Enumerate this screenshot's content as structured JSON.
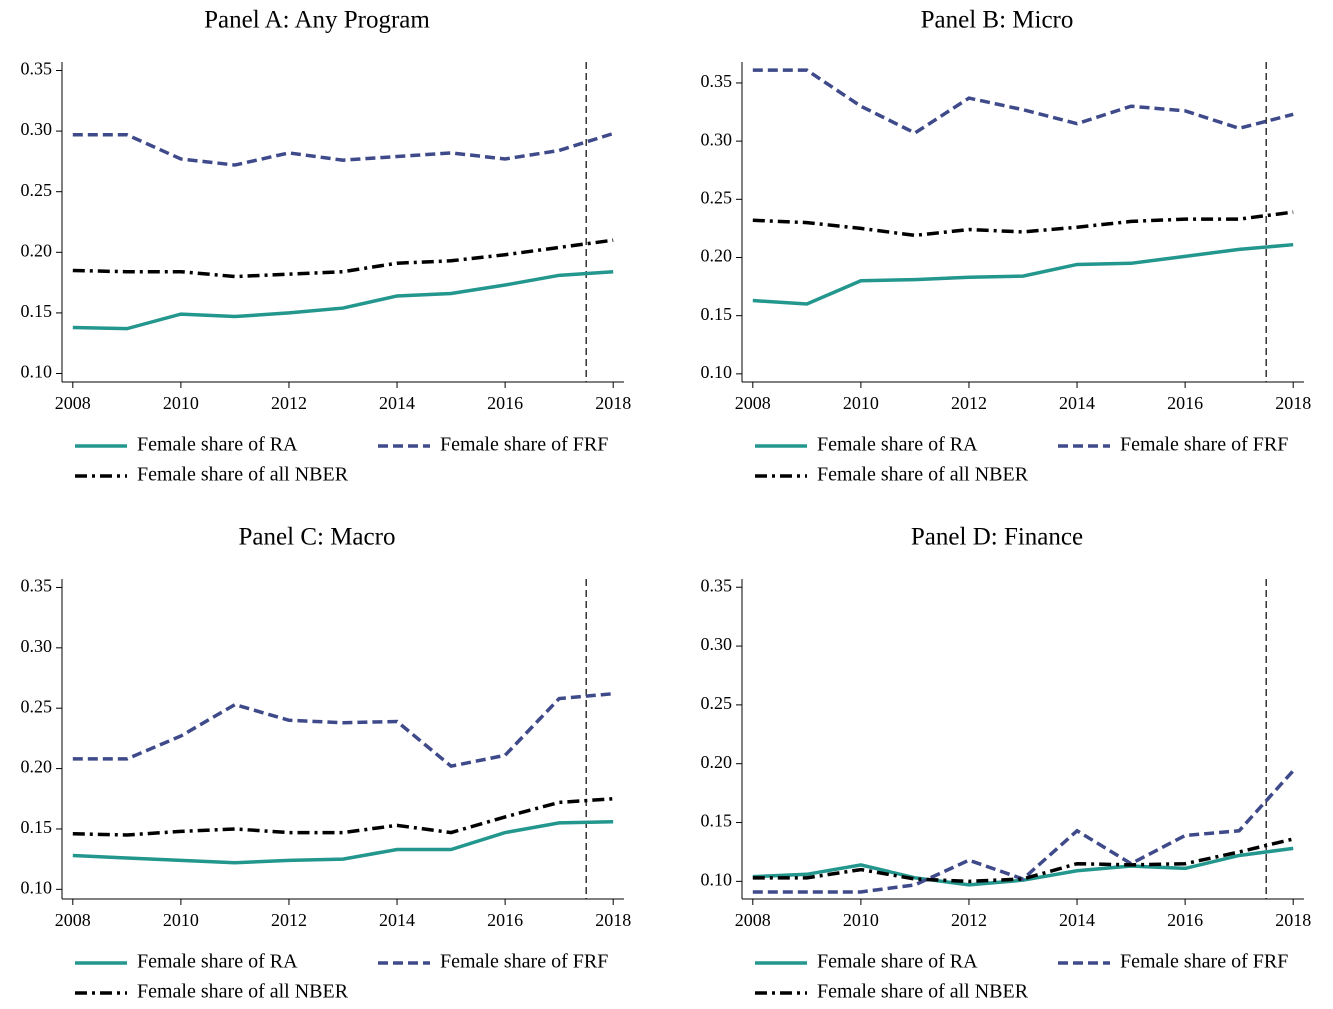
{
  "chart_data": [
    {
      "type": "line",
      "title": "Panel A: Any Program",
      "x": [
        2008,
        2009,
        2010,
        2011,
        2012,
        2013,
        2014,
        2015,
        2016,
        2017,
        2018
      ],
      "series": [
        {
          "name": "Female share of RA",
          "color": "#23978d",
          "dash": "solid",
          "values": [
            0.138,
            0.137,
            0.149,
            0.147,
            0.15,
            0.154,
            0.164,
            0.166,
            0.173,
            0.181,
            0.184
          ]
        },
        {
          "name": "Female share of FRF",
          "color": "#3f4a8a",
          "dash": "dashed",
          "values": [
            0.297,
            0.297,
            0.277,
            0.272,
            0.282,
            0.276,
            0.279,
            0.282,
            0.277,
            0.284,
            0.298
          ]
        },
        {
          "name": "Female share of all NBER",
          "color": "#000000",
          "dash": "dashdot",
          "values": [
            0.185,
            0.184,
            0.184,
            0.18,
            0.182,
            0.184,
            0.191,
            0.193,
            0.198,
            0.204,
            0.21
          ]
        }
      ],
      "xlim": [
        2007.8,
        2018.2
      ],
      "xticks": [
        2008,
        2010,
        2012,
        2014,
        2016,
        2018
      ],
      "ylim": [
        0.093,
        0.357
      ],
      "yticks": [
        {
          "value": 0.1,
          "label": "0.10"
        },
        {
          "value": 0.15,
          "label": "0.15"
        },
        {
          "value": 0.2,
          "label": "0.20"
        },
        {
          "value": 0.25,
          "label": "0.25"
        },
        {
          "value": 0.3,
          "label": "0.30"
        },
        {
          "value": 0.35,
          "label": "0.35"
        }
      ],
      "vline": 2017.5
    },
    {
      "type": "line",
      "title": "Panel B: Micro",
      "x": [
        2008,
        2009,
        2010,
        2011,
        2012,
        2013,
        2014,
        2015,
        2016,
        2017,
        2018
      ],
      "series": [
        {
          "name": "Female share of RA",
          "color": "#23978d",
          "dash": "solid",
          "values": [
            0.163,
            0.16,
            0.18,
            0.181,
            0.183,
            0.184,
            0.194,
            0.195,
            0.201,
            0.207,
            0.211
          ]
        },
        {
          "name": "Female share of FRF",
          "color": "#3f4a8a",
          "dash": "dashed",
          "values": [
            0.361,
            0.361,
            0.33,
            0.307,
            0.337,
            0.327,
            0.315,
            0.33,
            0.326,
            0.311,
            0.323
          ]
        },
        {
          "name": "Female share of all NBER",
          "color": "#000000",
          "dash": "dashdot",
          "values": [
            0.232,
            0.23,
            0.225,
            0.219,
            0.224,
            0.222,
            0.226,
            0.231,
            0.233,
            0.233,
            0.239
          ]
        }
      ],
      "xlim": [
        2007.8,
        2018.2
      ],
      "xticks": [
        2008,
        2010,
        2012,
        2014,
        2016,
        2018
      ],
      "ylim": [
        0.093,
        0.368
      ],
      "yticks": [
        {
          "value": 0.1,
          "label": "0.10"
        },
        {
          "value": 0.15,
          "label": "0.15"
        },
        {
          "value": 0.2,
          "label": "0.20"
        },
        {
          "value": 0.25,
          "label": "0.25"
        },
        {
          "value": 0.3,
          "label": "0.30"
        },
        {
          "value": 0.35,
          "label": "0.35"
        }
      ],
      "vline": 2017.5
    },
    {
      "type": "line",
      "title": "Panel C: Macro",
      "x": [
        2008,
        2009,
        2010,
        2011,
        2012,
        2013,
        2014,
        2015,
        2016,
        2017,
        2018
      ],
      "series": [
        {
          "name": "Female share of RA",
          "color": "#23978d",
          "dash": "solid",
          "values": [
            0.128,
            0.126,
            0.124,
            0.122,
            0.124,
            0.125,
            0.133,
            0.133,
            0.147,
            0.155,
            0.156
          ]
        },
        {
          "name": "Female share of FRF",
          "color": "#3f4a8a",
          "dash": "dashed",
          "values": [
            0.208,
            0.208,
            0.227,
            0.253,
            0.24,
            0.238,
            0.239,
            0.202,
            0.211,
            0.258,
            0.262
          ]
        },
        {
          "name": "Female share of all NBER",
          "color": "#000000",
          "dash": "dashdot",
          "values": [
            0.146,
            0.145,
            0.148,
            0.15,
            0.147,
            0.147,
            0.153,
            0.147,
            0.16,
            0.172,
            0.175
          ]
        }
      ],
      "xlim": [
        2007.8,
        2018.2
      ],
      "xticks": [
        2008,
        2010,
        2012,
        2014,
        2016,
        2018
      ],
      "ylim": [
        0.092,
        0.357
      ],
      "yticks": [
        {
          "value": 0.1,
          "label": "0.10"
        },
        {
          "value": 0.15,
          "label": "0.15"
        },
        {
          "value": 0.2,
          "label": "0.20"
        },
        {
          "value": 0.25,
          "label": "0.25"
        },
        {
          "value": 0.3,
          "label": "0.30"
        },
        {
          "value": 0.35,
          "label": "0.35"
        }
      ],
      "vline": 2017.5
    },
    {
      "type": "line",
      "title": "Panel D: Finance",
      "x": [
        2008,
        2009,
        2010,
        2011,
        2012,
        2013,
        2014,
        2015,
        2016,
        2017,
        2018
      ],
      "series": [
        {
          "name": "Female share of RA",
          "color": "#23978d",
          "dash": "solid",
          "values": [
            0.104,
            0.106,
            0.114,
            0.103,
            0.097,
            0.101,
            0.109,
            0.113,
            0.111,
            0.122,
            0.128
          ]
        },
        {
          "name": "Female share of FRF",
          "color": "#3f4a8a",
          "dash": "dashed",
          "values": [
            0.091,
            0.091,
            0.091,
            0.097,
            0.118,
            0.102,
            0.143,
            0.115,
            0.139,
            0.143,
            0.194
          ]
        },
        {
          "name": "Female share of all NBER",
          "color": "#000000",
          "dash": "dashdot",
          "values": [
            0.103,
            0.103,
            0.11,
            0.102,
            0.1,
            0.102,
            0.115,
            0.114,
            0.115,
            0.125,
            0.136
          ]
        }
      ],
      "xlim": [
        2007.8,
        2018.2
      ],
      "xticks": [
        2008,
        2010,
        2012,
        2014,
        2016,
        2018
      ],
      "ylim": [
        0.085,
        0.357
      ],
      "yticks": [
        {
          "value": 0.1,
          "label": "0.10"
        },
        {
          "value": 0.15,
          "label": "0.15"
        },
        {
          "value": 0.2,
          "label": "0.20"
        },
        {
          "value": 0.25,
          "label": "0.25"
        },
        {
          "value": 0.3,
          "label": "0.30"
        },
        {
          "value": 0.35,
          "label": "0.35"
        }
      ],
      "vline": 2017.5
    }
  ]
}
